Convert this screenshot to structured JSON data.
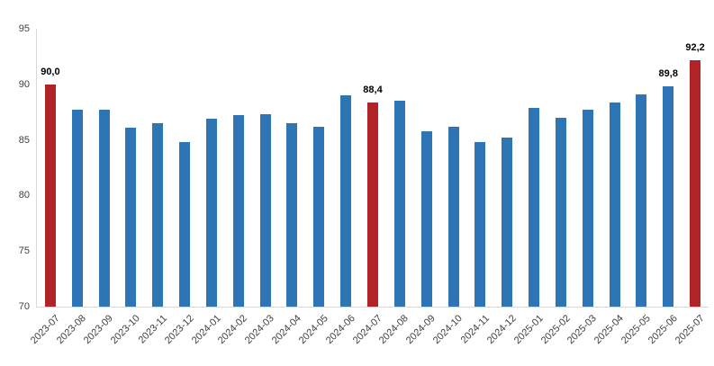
{
  "chart_data": {
    "type": "bar",
    "title": "",
    "xlabel": "",
    "ylabel": "",
    "categories": [
      "2023-07",
      "2023-08",
      "2023-09",
      "2023-10",
      "2023-11",
      "2023-12",
      "2024-01",
      "2024-02",
      "2024-03",
      "2024-04",
      "2024-05",
      "2024-06",
      "2024-07",
      "2024-08",
      "2024-09",
      "2024-10",
      "2024-11",
      "2024-12",
      "2025-01",
      "2025-02",
      "2025-03",
      "2025-04",
      "2025-05",
      "2025-06",
      "2025-07"
    ],
    "values": [
      90.0,
      87.7,
      87.7,
      86.1,
      86.5,
      84.8,
      86.9,
      87.2,
      87.3,
      86.5,
      86.2,
      89.0,
      88.4,
      88.5,
      85.8,
      86.2,
      84.8,
      85.2,
      87.9,
      87.0,
      87.7,
      88.4,
      89.1,
      89.8,
      92.2
    ],
    "highlight_indices": [
      0,
      12,
      24
    ],
    "data_labels": [
      {
        "index": 0,
        "text": "90,0"
      },
      {
        "index": 12,
        "text": "88,4"
      },
      {
        "index": 23,
        "text": "89,8"
      },
      {
        "index": 24,
        "text": "92,2"
      }
    ],
    "ylim": [
      70,
      95
    ],
    "yticks": [
      70,
      75,
      80,
      85,
      90,
      95
    ],
    "bar_color": "#2e75b6",
    "highlight_color": "#b02428",
    "axis_color": "#d9d9d9",
    "tick_label_color": "#404040",
    "grid": false,
    "legend_position": "none"
  }
}
